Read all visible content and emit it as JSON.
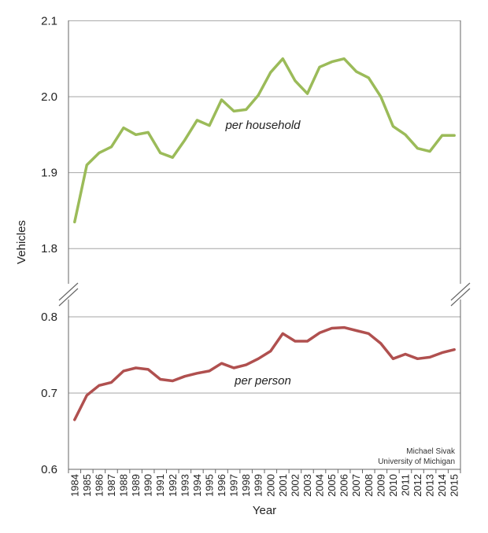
{
  "chart_data": {
    "type": "line",
    "xlabel": "Year",
    "ylabel": "Vehicles",
    "x": [
      1984,
      1985,
      1986,
      1987,
      1988,
      1989,
      1990,
      1991,
      1992,
      1993,
      1994,
      1995,
      1996,
      1997,
      1998,
      1999,
      2000,
      2001,
      2002,
      2003,
      2004,
      2005,
      2006,
      2007,
      2008,
      2009,
      2010,
      2011,
      2012,
      2013,
      2014,
      2015
    ],
    "x_tick_labels": [
      "1984",
      "1985",
      "1986",
      "1987",
      "1988",
      "1989",
      "1990",
      "1991",
      "1992",
      "1993",
      "1994",
      "1995",
      "1996",
      "1997",
      "1998",
      "1999",
      "2000",
      "2001",
      "2002",
      "2003",
      "2004",
      "2005",
      "2006",
      "2007",
      "2008",
      "2009",
      "2010",
      "2011",
      "2012",
      "2013",
      "2014",
      "2015"
    ],
    "grid": true,
    "axis_break": true,
    "panels": [
      {
        "ylim": [
          1.75,
          2.1
        ],
        "yticks": [
          1.8,
          1.9,
          2.0,
          2.1
        ],
        "ytick_labels": [
          "1.8",
          "1.9",
          "2.0",
          "2.1"
        ],
        "series": [
          {
            "name": "per household",
            "color": "#9bbb59",
            "values": [
              1.835,
              1.91,
              1.926,
              1.934,
              1.959,
              1.95,
              1.953,
              1.926,
              1.92,
              1.943,
              1.969,
              1.962,
              1.996,
              1.981,
              1.983,
              2.002,
              2.032,
              2.05,
              2.021,
              2.004,
              2.039,
              2.046,
              2.05,
              2.033,
              2.025,
              2.0,
              1.961,
              1.95,
              1.932,
              1.928,
              1.949,
              1.949
            ]
          }
        ]
      },
      {
        "ylim": [
          0.6,
          0.82
        ],
        "yticks": [
          0.6,
          0.7,
          0.8
        ],
        "ytick_labels": [
          "0.6",
          "0.7",
          "0.8"
        ],
        "series": [
          {
            "name": "per person",
            "color": "#b0504f",
            "values": [
              0.665,
              0.697,
              0.71,
              0.714,
              0.729,
              0.733,
              0.731,
              0.718,
              0.716,
              0.722,
              0.726,
              0.729,
              0.739,
              0.733,
              0.737,
              0.745,
              0.755,
              0.778,
              0.768,
              0.768,
              0.779,
              0.785,
              0.786,
              0.782,
              0.778,
              0.765,
              0.745,
              0.751,
              0.745,
              0.747,
              0.753,
              0.757
            ]
          }
        ]
      }
    ],
    "annotations": [
      "Michael Sivak",
      "University of Michigan"
    ]
  }
}
